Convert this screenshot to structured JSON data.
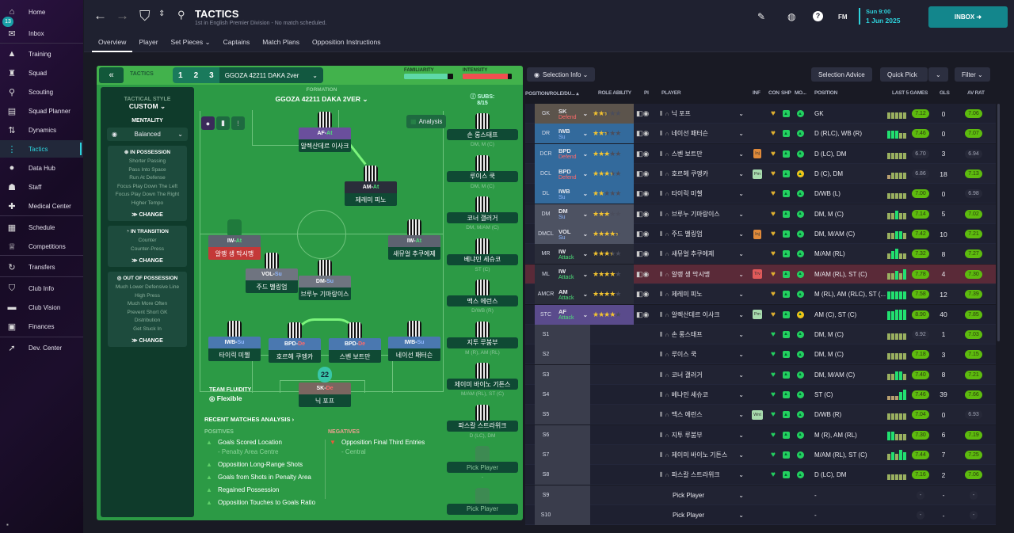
{
  "sidebar": {
    "items": [
      {
        "label": "Home",
        "icon": "home-icon",
        "glyph": "⌂"
      },
      {
        "label": "Inbox",
        "icon": "inbox-icon",
        "glyph": "✉",
        "badge": "13"
      },
      {
        "label": "Training",
        "icon": "training-icon",
        "glyph": "▲"
      },
      {
        "label": "Squad",
        "icon": "shirt-icon",
        "glyph": "♜"
      },
      {
        "label": "Scouting",
        "icon": "search-icon",
        "glyph": "⚲"
      },
      {
        "label": "Squad Planner",
        "icon": "clipboard-icon",
        "glyph": "▤"
      },
      {
        "label": "Dynamics",
        "icon": "dynamics-icon",
        "glyph": "⇅"
      },
      {
        "label": "Tactics",
        "icon": "tactics-icon",
        "glyph": "⋮",
        "active": true
      },
      {
        "label": "Data Hub",
        "icon": "data-hub-icon",
        "glyph": "●"
      },
      {
        "label": "Staff",
        "icon": "staff-icon",
        "glyph": "☗"
      },
      {
        "label": "Medical Center",
        "icon": "medical-icon",
        "glyph": "✚"
      },
      {
        "label": "Schedule",
        "icon": "calendar-icon",
        "glyph": "▦"
      },
      {
        "label": "Competitions",
        "icon": "trophy-icon",
        "glyph": "♕"
      },
      {
        "label": "Transfers",
        "icon": "transfers-icon",
        "glyph": "↻"
      },
      {
        "label": "Club Info",
        "icon": "shield-icon",
        "glyph": "⛉"
      },
      {
        "label": "Club Vision",
        "icon": "briefcase-icon",
        "glyph": "▬"
      },
      {
        "label": "Finances",
        "icon": "finances-icon",
        "glyph": "▣"
      },
      {
        "label": "Dev. Center",
        "icon": "dev-center-icon",
        "glyph": "➚"
      }
    ]
  },
  "header": {
    "title": "TACTICS",
    "subtitle": "1st in English Premier Division - No match scheduled.",
    "tabs": [
      "Overview",
      "Player",
      "Set Pieces ⌄",
      "Captains",
      "Match Plans",
      "Opposition Instructions"
    ],
    "fm": "FM",
    "date_time": "Sun 9:00",
    "date": "1 Jun 2025",
    "inbox": "INBOX ➜"
  },
  "tactics": {
    "label": "TACTICS",
    "slots": [
      "1",
      "2",
      "3"
    ],
    "name": "GGOZA 42211 DAKA 2ver",
    "familiarity_label": "FAMILIARITY",
    "familiarity": 0.88,
    "intensity_label": "INTENSITY",
    "intensity": 0.92,
    "style_label": "TACTICAL STYLE",
    "style": "CUSTOM ⌄",
    "mentality_label": "MENTALITY",
    "mentality": "Balanced",
    "in_possession": {
      "title": "IN POSSESSION",
      "items": [
        "Shorter Passing",
        "Pass Into Space",
        "Run At Defense",
        "Focus Play Down The Left",
        "Focus Play Down The Right",
        "Higher Tempo"
      ]
    },
    "in_transition": {
      "title": "IN TRANSITION",
      "items": [
        "Counter",
        "Counter-Press"
      ]
    },
    "out_of_possession": {
      "title": "OUT OF POSSESSION",
      "items": [
        "Much Lower Defensive Line",
        "High Press",
        "Much More Often",
        "Prevent Short GK",
        "Distribution",
        "Get Stuck In"
      ]
    },
    "change": "≫ CHANGE",
    "formation_label": "FORMATION",
    "formation": "GGOZA 42211 DAKA 2VER",
    "subs_label": "SUBS:",
    "subs_count": "8/15",
    "analysis": "Analysis",
    "fluidity_label": "TEAM FLUIDITY",
    "fluidity": "Flexible",
    "pitch_players": [
      {
        "role": "AF",
        "duty": "At",
        "name": "알렉산데르 이사크"
      },
      {
        "role": "AM",
        "duty": "At",
        "name": "제레미 피노"
      },
      {
        "role": "IW",
        "duty": "At",
        "name": "알랭 생 막시맹",
        "warn": true
      },
      {
        "role": "IW",
        "duty": "At",
        "name": "새뮤얼 추쿠에제"
      },
      {
        "role": "VOL",
        "duty": "Su",
        "name": "주드 벨링엄"
      },
      {
        "role": "DM",
        "duty": "Su",
        "name": "브루누 기마랑이스"
      },
      {
        "role": "IWB",
        "duty": "Su",
        "name": "타이릭 미첼"
      },
      {
        "role": "BPD",
        "duty": "De",
        "name": "호르헤 쿠엥카"
      },
      {
        "role": "BPD",
        "duty": "De",
        "name": "스벤 보트만"
      },
      {
        "role": "IWB",
        "duty": "Su",
        "name": "네이선 패터슨"
      },
      {
        "role": "SK",
        "duty": "De",
        "name": "닉 포프",
        "number": "22"
      }
    ],
    "subs": [
      {
        "name": "손 롱스태프",
        "pos": "DM, M (C)"
      },
      {
        "name": "루이스 쿡",
        "pos": "DM, M (C)"
      },
      {
        "name": "코너 갤러거",
        "pos": "DM, M/AM (C)"
      },
      {
        "name": "베냐민 세슈코",
        "pos": "ST (C)"
      },
      {
        "name": "맥스 에런스",
        "pos": "D/WB (R)"
      },
      {
        "name": "지투 루붐부",
        "pos": "M (R), AM (RL)"
      },
      {
        "name": "제이미 바이노 기튼스",
        "pos": "M/AM (RL), ST (C)"
      },
      {
        "name": "파스칼 스트라위크",
        "pos": "D (LC), DM"
      },
      {
        "name": "Pick Player",
        "pos": "-",
        "empty": true
      },
      {
        "name": "Pick Player",
        "pos": "",
        "empty": true
      }
    ],
    "recent_label": "RECENT MATCHES ANALYSIS ›",
    "positives_label": "POSITIVES",
    "negatives_label": "NEGATIVES",
    "positives": [
      {
        "text": "Goals Scored Location",
        "sub": "- Penalty Area Centre"
      },
      {
        "text": "Opposition Long-Range Shots"
      },
      {
        "text": "Goals from Shots in Penalty Area"
      },
      {
        "text": "Regained Possession"
      },
      {
        "text": "Opposition Touches to Goals Ratio"
      }
    ],
    "negatives": [
      {
        "text": "Opposition Final Third Entries",
        "sub": "- Central"
      }
    ]
  },
  "selection": {
    "selection_info": "Selection Info ⌄",
    "selection_advice": "Selection Advice",
    "quick_pick": "Quick Pick",
    "filter": "Filter ⌄",
    "columns": [
      "POSITION/ROLE/DU... ▴",
      "ROLE ABILITY",
      "PI",
      "PLAYER",
      "INF",
      "CON",
      "SHP",
      "MO...",
      "POSITION",
      "LAST 5 GAMES",
      "GLS",
      "AV RAT"
    ],
    "rows": [
      {
        "pos": "GK",
        "role": "SK",
        "duty": "Defend",
        "stars": 2.5,
        "name": "닉 포프",
        "inf": "",
        "position": "GK",
        "last5": [
          3,
          3,
          3,
          3,
          3
        ],
        "form": "7.12",
        "gls": "0",
        "av": "7.06",
        "group": "gk",
        "mo": "g"
      },
      {
        "pos": "DR",
        "role": "IWB",
        "duty": "Su",
        "stars": 2.5,
        "name": "네이선 패터슨",
        "inf": "",
        "position": "D (RLC), WB (R)",
        "last5": [
          4,
          4,
          4,
          3,
          3
        ],
        "form": "7.46",
        "gls": "0",
        "av": "7.07",
        "group": "def",
        "mo": "g"
      },
      {
        "pos": "DCR",
        "role": "BPD",
        "duty": "Defend",
        "stars": 3,
        "name": "스벤 보트만",
        "inf": "Inj",
        "position": "D (LC), DM",
        "last5": [
          3,
          3,
          3,
          3,
          3
        ],
        "form": "6.70",
        "gls": "3",
        "av": "6.94",
        "group": "def",
        "mo": "g"
      },
      {
        "pos": "DCL",
        "role": "BPD",
        "duty": "Defend",
        "stars": 3.5,
        "name": "호르헤 쿠엥카",
        "inf": "Pm",
        "position": "D (C), DM",
        "last5": [
          2,
          3,
          3,
          3,
          3
        ],
        "form": "6.86",
        "gls": "18",
        "av": "7.13",
        "group": "def",
        "mo": "y"
      },
      {
        "pos": "DL",
        "role": "IWB",
        "duty": "Su",
        "stars": 2,
        "name": "타이릭 미첼",
        "inf": "",
        "position": "D/WB (L)",
        "last5": [
          3,
          3,
          3,
          3,
          3
        ],
        "form": "7.00",
        "gls": "0",
        "av": "6.98",
        "group": "def",
        "mo": "g"
      },
      {
        "pos": "DM",
        "role": "DM",
        "duty": "Su",
        "stars": 3,
        "name": "브루누 기마랑이스",
        "inf": "",
        "position": "DM, M (C)",
        "last5": [
          3,
          3,
          4,
          3,
          3
        ],
        "form": "7.14",
        "gls": "5",
        "av": "7.02",
        "group": "dm",
        "mo": "g"
      },
      {
        "pos": "DMCL",
        "role": "VOL",
        "duty": "Su",
        "stars": 4.5,
        "name": "주드 벨링엄",
        "inf": "Inj",
        "position": "DM, M/AM (C)",
        "last5": [
          3,
          3,
          4,
          4,
          3
        ],
        "form": "7.42",
        "gls": "10",
        "av": "7.21",
        "group": "dm",
        "mo": "g"
      },
      {
        "pos": "MR",
        "role": "IW",
        "duty": "Attack",
        "stars": 3.5,
        "name": "새뮤얼 추쿠에제",
        "inf": "",
        "position": "M/AM (RL)",
        "last5": [
          3,
          4,
          5,
          3,
          3
        ],
        "form": "7.32",
        "gls": "8",
        "av": "7.27",
        "group": "att",
        "mo": "g"
      },
      {
        "pos": "ML",
        "role": "IW",
        "duty": "Attack",
        "stars": 4,
        "name": "알랭 생 막시맹",
        "inf": "Trv",
        "position": "M/AM (RL), ST (C)",
        "last5": [
          3,
          3,
          4,
          3,
          5
        ],
        "form": "7.78",
        "gls": "4",
        "av": "7.30",
        "group": "att",
        "mo": "g",
        "highlight": true
      },
      {
        "pos": "AMCR",
        "role": "AM",
        "duty": "Attack",
        "stars": 4,
        "name": "제레미 피노",
        "inf": "",
        "position": "M (RL), AM (RLC), ST (...",
        "last5": [
          4,
          4,
          4,
          4,
          4
        ],
        "form": "7.58",
        "gls": "12",
        "av": "7.39",
        "group": "att",
        "mo": "g"
      },
      {
        "pos": "STC",
        "role": "AF",
        "duty": "Attack",
        "stars": 4,
        "name": "알렉산데르 이사크",
        "inf": "Pm",
        "position": "AM (C), ST (C)",
        "last5": [
          4,
          4,
          5,
          5,
          5
        ],
        "form": "8.90",
        "gls": "40",
        "av": "7.85",
        "group": "st",
        "mo": "y"
      },
      {
        "pos": "S1",
        "name": "손 롱스태프",
        "position": "DM, M (C)",
        "last5": [
          3,
          3,
          3,
          3,
          3
        ],
        "form": "6.92",
        "gls": "1",
        "av": "7.03",
        "group": "sub",
        "mo": "g"
      },
      {
        "pos": "S2",
        "name": "루이스 쿡",
        "position": "DM, M (C)",
        "last5": [
          3,
          3,
          3,
          3,
          3
        ],
        "form": "7.18",
        "gls": "3",
        "av": "7.15",
        "group": "sub",
        "mo": "g"
      },
      {
        "pos": "S3",
        "name": "코너 갤러거",
        "position": "DM, M/AM (C)",
        "last5": [
          3,
          3,
          4,
          4,
          3
        ],
        "form": "7.40",
        "gls": "8",
        "av": "7.21",
        "group": "sub",
        "mo": "g"
      },
      {
        "pos": "S4",
        "name": "베냐민 세슈코",
        "position": "ST (C)",
        "last5": [
          2,
          2,
          2,
          4,
          5
        ],
        "form": "7.46",
        "gls": "39",
        "av": "7.66",
        "group": "sub",
        "mo": "g"
      },
      {
        "pos": "S5",
        "name": "맥스 에런스",
        "inf": "Wnt",
        "position": "D/WB (R)",
        "last5": [
          3,
          3,
          3,
          3,
          3
        ],
        "form": "7.04",
        "gls": "0",
        "av": "6.93",
        "group": "sub",
        "mo": "g"
      },
      {
        "pos": "S6",
        "name": "지투 루붐부",
        "position": "M (R), AM (RL)",
        "last5": [
          4,
          4,
          3,
          3,
          3
        ],
        "form": "7.30",
        "gls": "6",
        "av": "7.19",
        "group": "sub",
        "mo": "g"
      },
      {
        "pos": "S7",
        "name": "제이미 바이노 기튼스",
        "position": "M/AM (RL), ST (C)",
        "last5": [
          3,
          4,
          3,
          5,
          4
        ],
        "form": "7.44",
        "gls": "7",
        "av": "7.25",
        "group": "sub",
        "mo": "g"
      },
      {
        "pos": "S8",
        "name": "파스칼 스트라위크",
        "position": "D (LC), DM",
        "last5": [
          3,
          3,
          3,
          3,
          3
        ],
        "form": "7.16",
        "gls": "2",
        "av": "7.06",
        "group": "sub",
        "mo": "g"
      },
      {
        "pos": "S9",
        "name": "Pick Player",
        "position": "-",
        "form": "-",
        "gls": "-",
        "av": "-",
        "group": "sub",
        "empty": true
      },
      {
        "pos": "S10",
        "name": "Pick Player",
        "position": "-",
        "form": "-",
        "gls": "-",
        "av": "-",
        "group": "sub",
        "empty": true
      }
    ]
  },
  "colors": {
    "accent": "#2ed3dc",
    "pitch": "#2c9a45",
    "inbox": "#13868c",
    "rating_good": "#5dbb0e",
    "highlight_row": "#5a2a38"
  }
}
